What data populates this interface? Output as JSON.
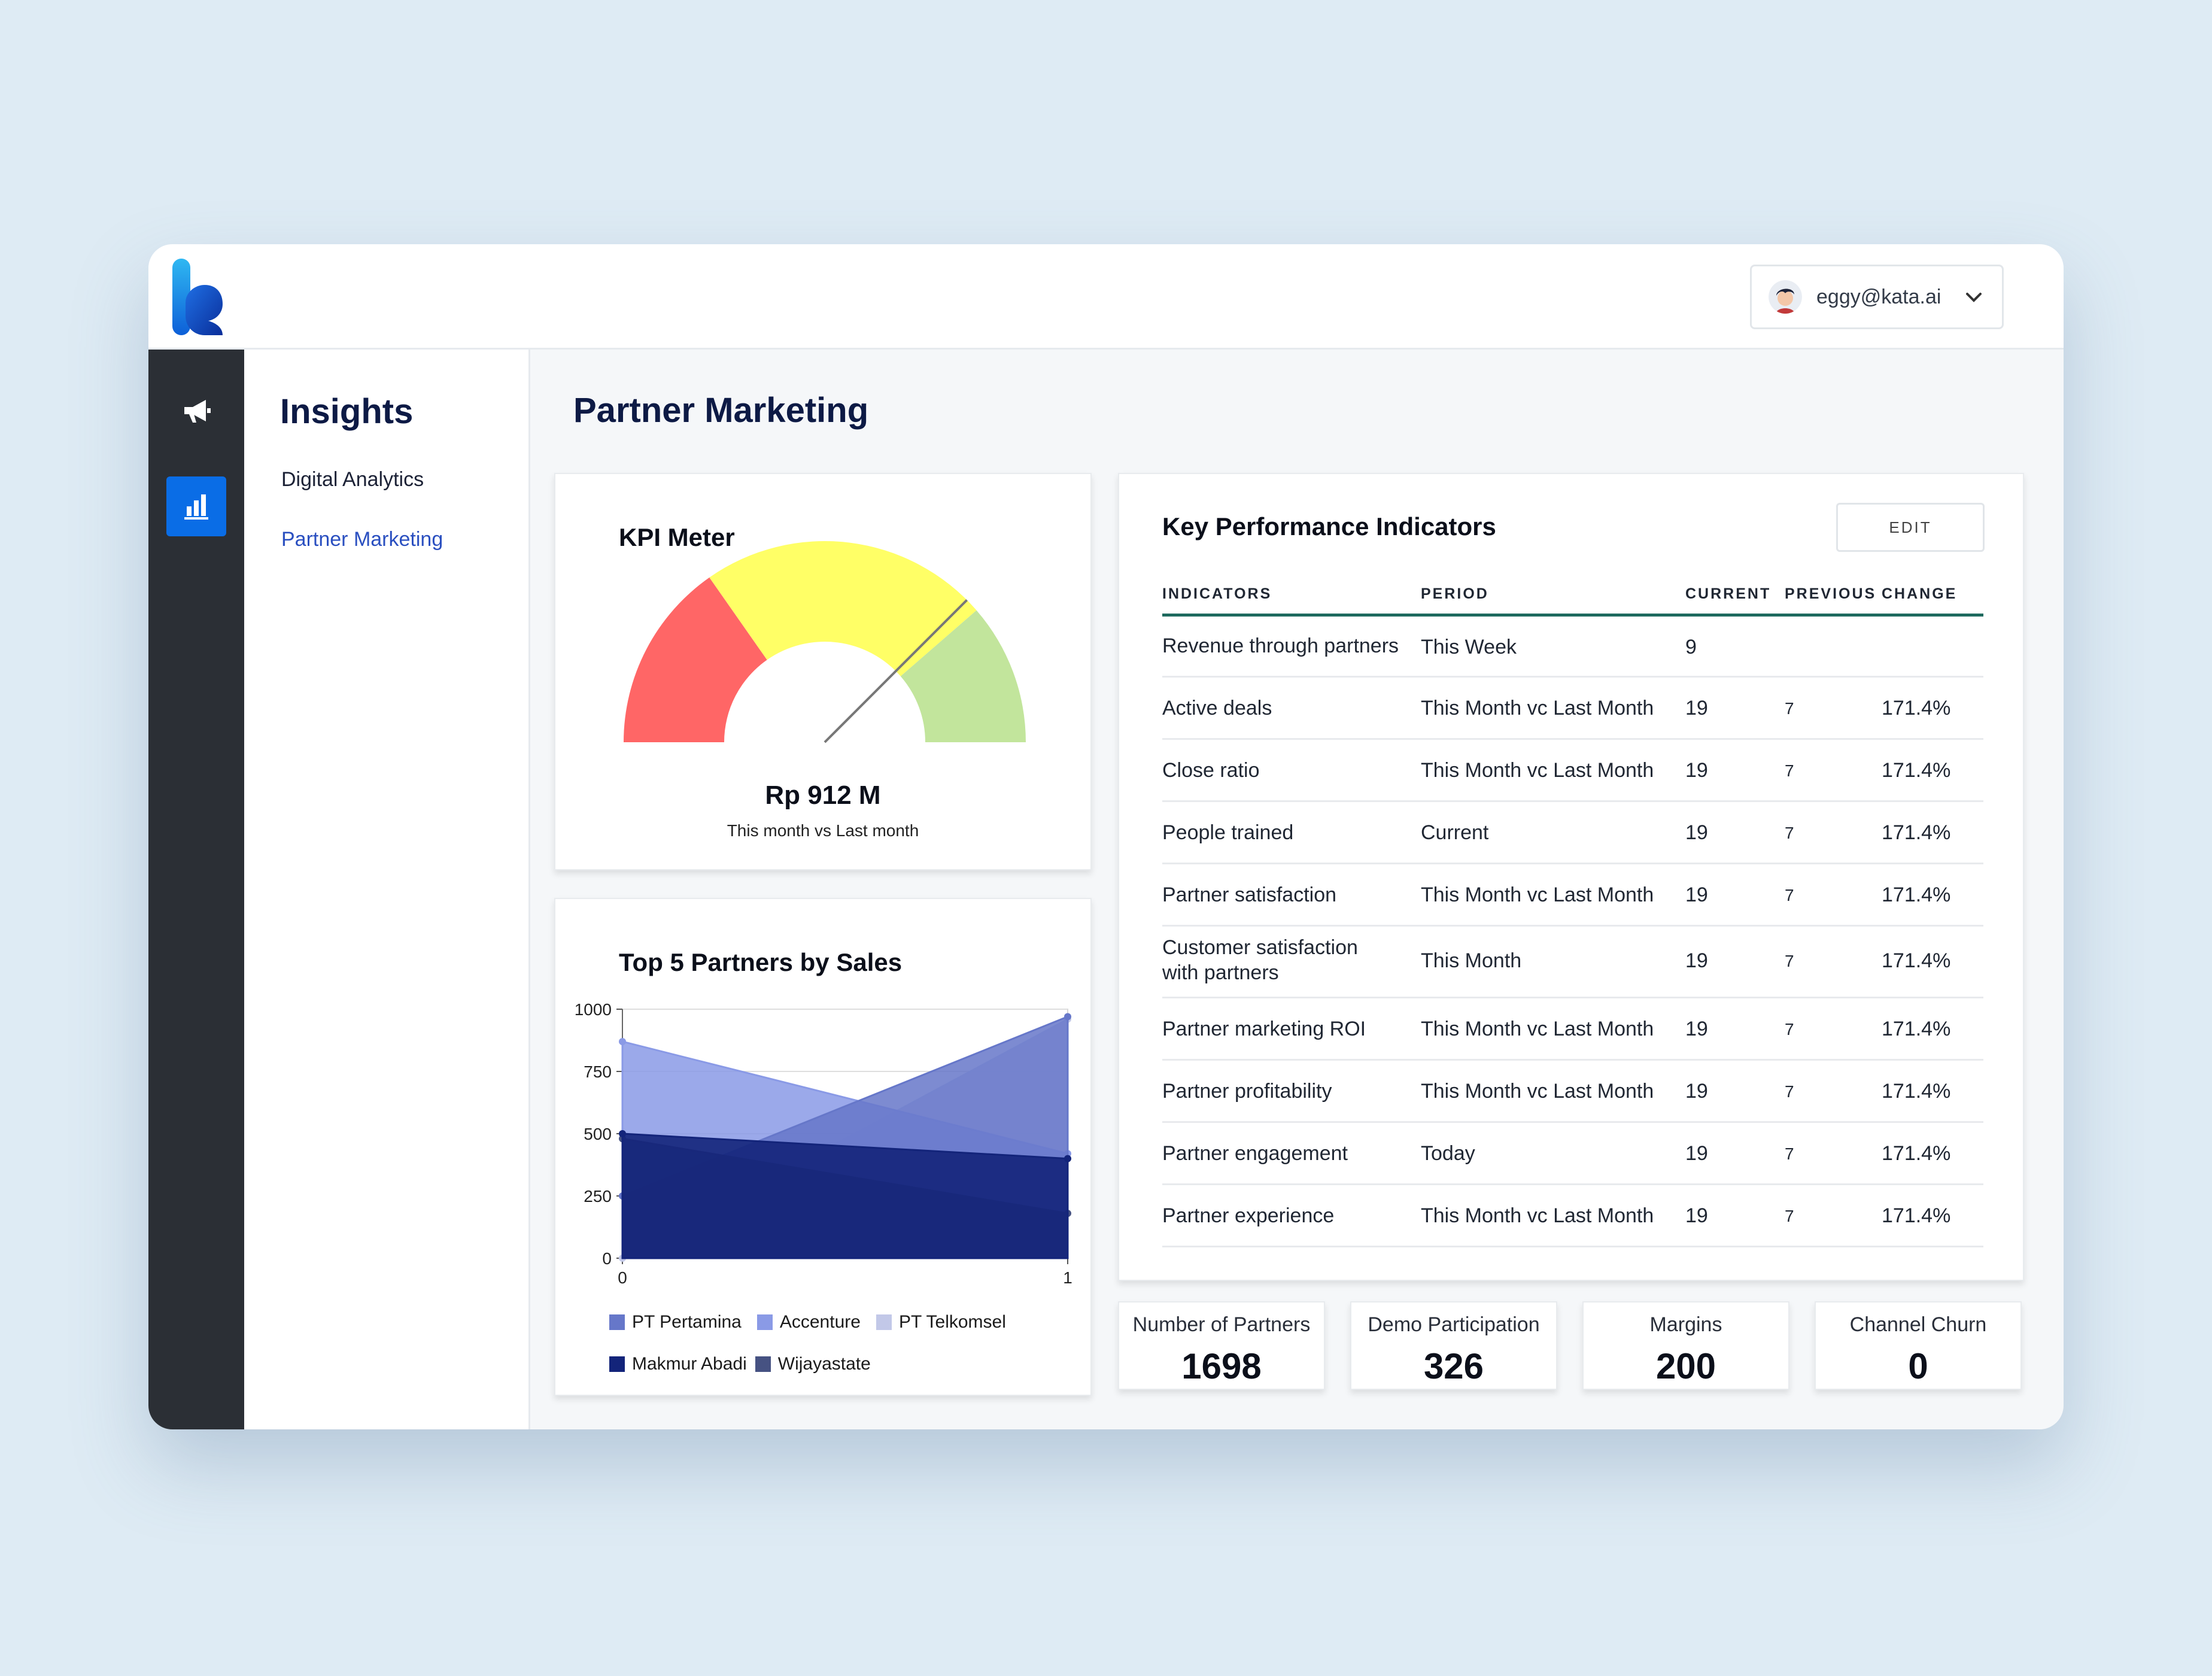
{
  "header": {
    "user_email": "eggy@kata.ai"
  },
  "iconbar": {
    "items": [
      {
        "icon": "megaphone-icon",
        "active": false
      },
      {
        "icon": "bar-chart-icon",
        "active": true
      }
    ]
  },
  "subnav": {
    "title": "Insights",
    "items": [
      {
        "label": "Digital Analytics",
        "active": false
      },
      {
        "label": "Partner Marketing",
        "active": true
      }
    ]
  },
  "page": {
    "title": "Partner Marketing"
  },
  "kpi_meter": {
    "title": "KPI Meter",
    "value": "Rp 912 M",
    "subtitle": "This month vs Last month",
    "bands": [
      {
        "color": "#ff6666"
      },
      {
        "color": "#ffff66"
      },
      {
        "color": "#c2e59c"
      }
    ],
    "needle_fraction": 0.75
  },
  "top_partners": {
    "title": "Top 5 Partners by Sales",
    "legend": [
      "PT Pertamina",
      "Accenture",
      "PT Telkomsel",
      "Makmur Abadi",
      "Wijayastate"
    ]
  },
  "chart_data": {
    "type": "area",
    "title": "Top 5 Partners by Sales",
    "x": [
      0,
      1
    ],
    "xticks": [
      "0",
      "1"
    ],
    "yticks": [
      "0",
      "250",
      "500",
      "750",
      "1000"
    ],
    "ylim": [
      0,
      1000
    ],
    "xlim": [
      0,
      1
    ],
    "legend_position": "bottom",
    "series": [
      {
        "name": "PT Pertamina",
        "values": [
          250,
          970
        ],
        "color": "#6677c9"
      },
      {
        "name": "Accenture",
        "values": [
          870,
          420
        ],
        "color": "#8a9ae6"
      },
      {
        "name": "PT Telkomsel",
        "values": [
          0,
          960
        ],
        "color": "#c2c8e8"
      },
      {
        "name": "Makmur Abadi",
        "values": [
          500,
          400
        ],
        "color": "#13247a"
      },
      {
        "name": "Wijayastate",
        "values": [
          480,
          180
        ],
        "color": "#465282"
      }
    ]
  },
  "kpi_table": {
    "title": "Key Performance Indicators",
    "edit_label": "EDIT",
    "headers": [
      "INDICATORS",
      "PERIOD",
      "CURRENT",
      "PREVIOUS",
      "CHANGE"
    ],
    "rows": [
      {
        "indicator": "Revenue through partners",
        "indicator2": "",
        "period": "This Week",
        "current": "9",
        "previous": "",
        "change": ""
      },
      {
        "indicator": "Active deals",
        "indicator2": "",
        "period": "This Month vc Last Month",
        "current": "19",
        "previous": "7",
        "change": "171.4%"
      },
      {
        "indicator": "Close ratio",
        "indicator2": "",
        "period": "This Month vc Last Month",
        "current": "19",
        "previous": "7",
        "change": "171.4%"
      },
      {
        "indicator": "People trained",
        "indicator2": "",
        "period": "Current",
        "current": "19",
        "previous": "7",
        "change": "171.4%"
      },
      {
        "indicator": "Partner satisfaction",
        "indicator2": "",
        "period": "This Month vc Last Month",
        "current": "19",
        "previous": "7",
        "change": "171.4%"
      },
      {
        "indicator": "Customer satisfaction",
        "indicator2": "with partners",
        "period": "This Month",
        "current": "19",
        "previous": "7",
        "change": "171.4%"
      },
      {
        "indicator": "Partner marketing ROI",
        "indicator2": "",
        "period": "This Month vc Last Month",
        "current": "19",
        "previous": "7",
        "change": "171.4%"
      },
      {
        "indicator": "Partner profitability",
        "indicator2": "",
        "period": "This Month vc Last Month",
        "current": "19",
        "previous": "7",
        "change": "171.4%"
      },
      {
        "indicator": "Partner engagement",
        "indicator2": "",
        "period": "Today",
        "current": "19",
        "previous": "7",
        "change": "171.4%"
      },
      {
        "indicator": "Partner experience",
        "indicator2": "",
        "period": "This Month vc Last Month",
        "current": "19",
        "previous": "7",
        "change": "171.4%"
      }
    ]
  },
  "stats": [
    {
      "label": "Number of Partners",
      "value": "1698"
    },
    {
      "label": "Demo Participation",
      "value": "326"
    },
    {
      "label": "Margins",
      "value": "200"
    },
    {
      "label": "Channel Churn",
      "value": "0"
    }
  ]
}
